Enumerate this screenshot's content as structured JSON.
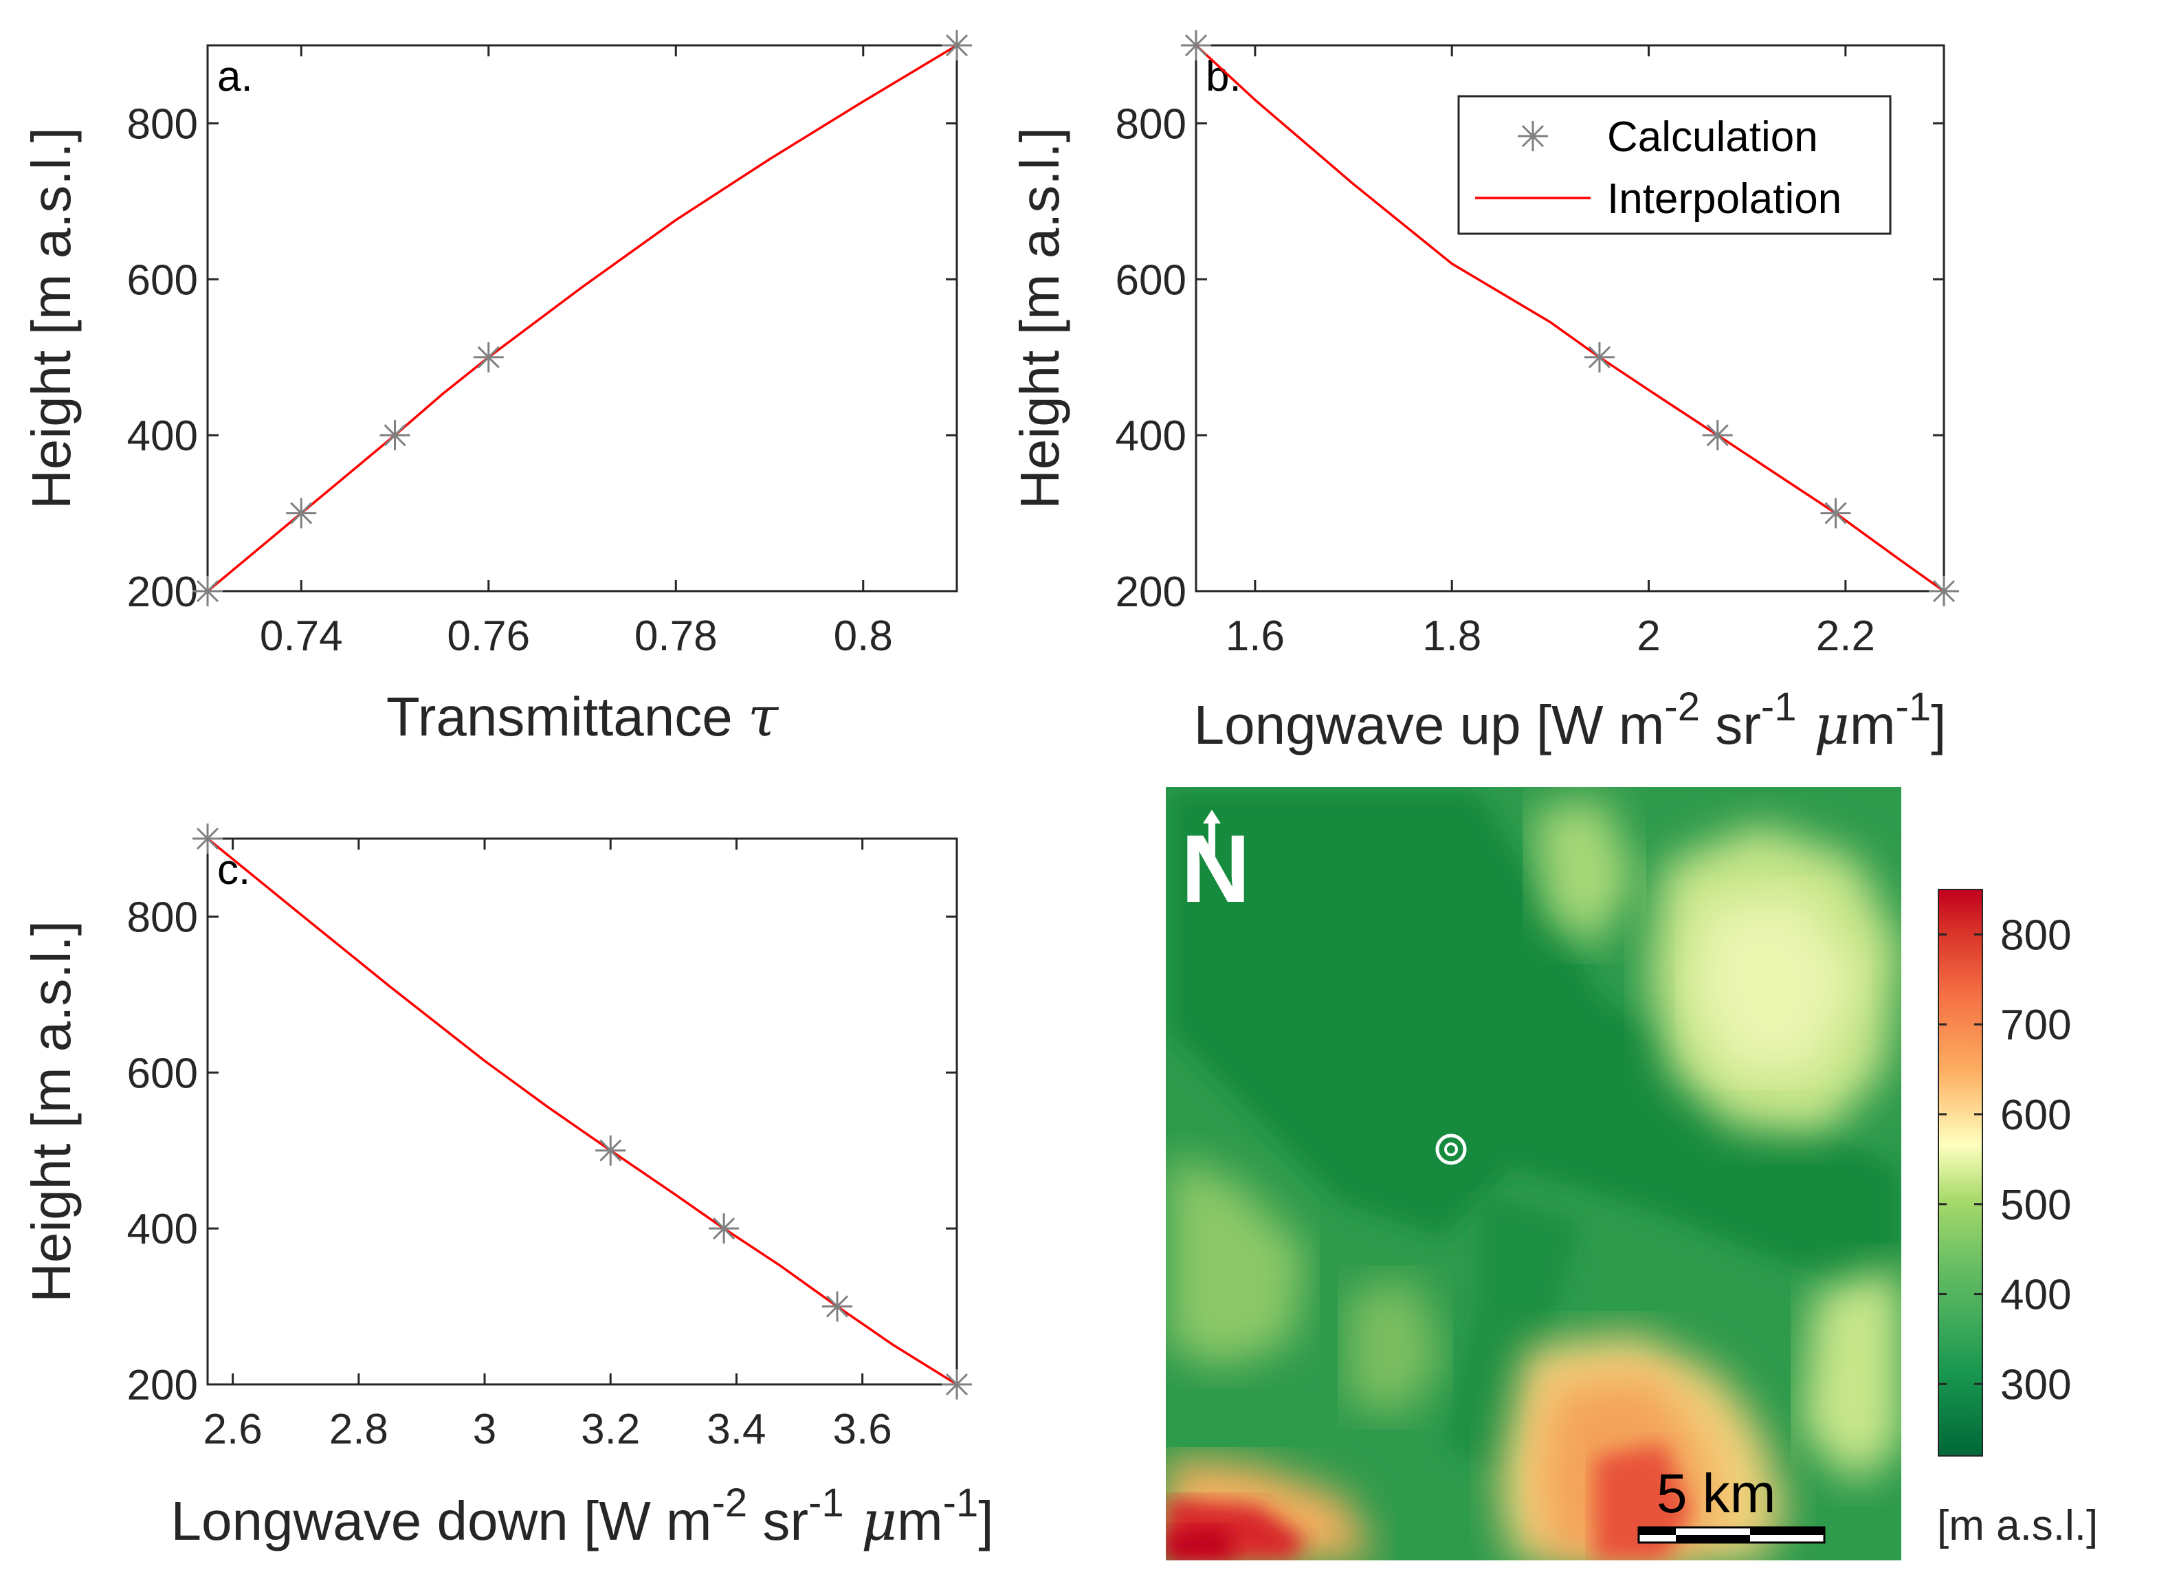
{
  "chart_data": [
    {
      "id": "a",
      "type": "line",
      "panel_label": "a.",
      "xlabel": "Transmittance",
      "xlabel_symbol": "τ",
      "ylabel": "Height [m a.s.l.]",
      "xlim": [
        0.73,
        0.81
      ],
      "ylim": [
        200,
        900
      ],
      "xticks": [
        0.74,
        0.76,
        0.78,
        0.8
      ],
      "xtick_labels": [
        "0.74",
        "0.76",
        "0.78",
        "0.8"
      ],
      "yticks": [
        200,
        400,
        600,
        800
      ],
      "ytick_labels": [
        "200",
        "400",
        "600",
        "800"
      ],
      "series": [
        {
          "name": "Calculation",
          "marker": "asterisk",
          "color": "#808080",
          "x": [
            0.73,
            0.74,
            0.75,
            0.76,
            0.81
          ],
          "y": [
            200,
            300,
            400,
            500,
            900
          ]
        },
        {
          "name": "Interpolation",
          "marker": "line",
          "color": "#ff0000",
          "x": [
            0.73,
            0.735,
            0.74,
            0.745,
            0.75,
            0.755,
            0.76,
            0.77,
            0.78,
            0.79,
            0.8,
            0.81
          ],
          "y": [
            200,
            250,
            300,
            350,
            400,
            452,
            500,
            590,
            676,
            754,
            828,
            900
          ]
        }
      ]
    },
    {
      "id": "b",
      "type": "line",
      "panel_label": "b.",
      "xlabel": "Longwave up [W m",
      "ylabel": "Height [m a.s.l.]",
      "xlim": [
        1.54,
        2.3
      ],
      "ylim": [
        200,
        900
      ],
      "xticks": [
        1.6,
        1.8,
        2,
        2.2
      ],
      "xtick_labels": [
        "1.6",
        "1.8",
        "2",
        "2.2"
      ],
      "yticks": [
        200,
        400,
        600,
        800
      ],
      "ytick_labels": [
        "200",
        "400",
        "600",
        "800"
      ],
      "legend": {
        "position": "top-right",
        "entries": [
          "Calculation",
          "Interpolation"
        ]
      },
      "series": [
        {
          "name": "Calculation",
          "marker": "asterisk",
          "color": "#808080",
          "x": [
            1.54,
            1.95,
            2.07,
            2.19,
            2.3
          ],
          "y": [
            900,
            500,
            400,
            300,
            200
          ]
        },
        {
          "name": "Interpolation",
          "marker": "line",
          "color": "#ff0000",
          "x": [
            1.54,
            1.6,
            1.7,
            1.8,
            1.9,
            1.95,
            2.0,
            2.07,
            2.13,
            2.19,
            2.25,
            2.3
          ],
          "y": [
            900,
            830,
            722,
            620,
            545,
            500,
            458,
            400,
            350,
            300,
            245,
            200
          ]
        }
      ]
    },
    {
      "id": "c",
      "type": "line",
      "panel_label": "c.",
      "xlabel": "Longwave down [W m",
      "ylabel": "Height [m a.s.l.]",
      "xlim": [
        2.56,
        3.75
      ],
      "ylim": [
        200,
        900
      ],
      "xticks": [
        2.6,
        2.8,
        3,
        3.2,
        3.4,
        3.6
      ],
      "xtick_labels": [
        "2.6",
        "2.8",
        "3",
        "3.2",
        "3.4",
        "3.6"
      ],
      "yticks": [
        200,
        400,
        600,
        800
      ],
      "ytick_labels": [
        "200",
        "400",
        "600",
        "800"
      ],
      "series": [
        {
          "name": "Calculation",
          "marker": "asterisk",
          "color": "#808080",
          "x": [
            2.56,
            3.2,
            3.38,
            3.56,
            3.75
          ],
          "y": [
            900,
            500,
            400,
            300,
            200
          ]
        },
        {
          "name": "Interpolation",
          "marker": "line",
          "color": "#ff0000",
          "x": [
            2.56,
            2.7,
            2.85,
            3.0,
            3.1,
            3.2,
            3.3,
            3.38,
            3.47,
            3.56,
            3.65,
            3.75
          ],
          "y": [
            900,
            808,
            710,
            615,
            556,
            500,
            445,
            400,
            352,
            300,
            250,
            200
          ]
        }
      ]
    }
  ],
  "unit_superscripts": {
    "m_exp": "-2",
    "sr": "sr",
    "sr_exp": "-1",
    "mu": "μ",
    "m2": "m",
    "m2_exp": "-1",
    "close": "]"
  },
  "map": {
    "north_label": "N",
    "scale_label": "5 km",
    "colorbar_label": "[m a.s.l.]",
    "colorbar_range": [
      220,
      850
    ],
    "colorbar_ticks": [
      300,
      400,
      500,
      600,
      700,
      800
    ],
    "colorbar_tick_labels": [
      "300",
      "400",
      "500",
      "600",
      "700",
      "800"
    ]
  },
  "colors": {
    "calc_marker": "#808080",
    "interp_line": "#ff0000",
    "map_low": "#1a7a3a",
    "map_mid": "#ffffc0",
    "map_high": "#c8001e"
  }
}
